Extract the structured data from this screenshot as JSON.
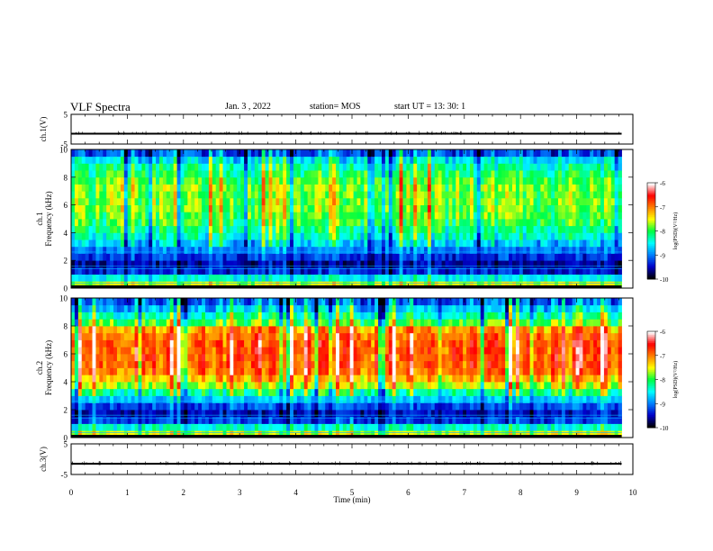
{
  "header": {
    "title": "VLF Spectra",
    "date": "Jan. 3 , 2022",
    "station": "station= MOS",
    "start": "start UT = 13: 30: 1"
  },
  "chart_data": [
    {
      "type": "line",
      "panel": "ch1-waveform",
      "ylabel": "ch.1(V)",
      "yticks": [
        "5",
        "-5"
      ],
      "ylim": [
        -5,
        5
      ],
      "xlim": [
        0,
        10
      ],
      "series": [
        {
          "x": [
            0,
            9.8
          ],
          "values": [
            -1.5,
            -1.5
          ]
        }
      ]
    },
    {
      "type": "heatmap",
      "panel": "ch1-spectrogram",
      "ylabel": "ch.1",
      "ylabel2": "Frequency (kHz)",
      "yticks": [
        "0",
        "2",
        "4",
        "6",
        "8",
        "10"
      ],
      "ylim": [
        0,
        10
      ],
      "xlim": [
        0,
        10
      ],
      "data_xmax": 9.8,
      "profile_khz": [
        0.25,
        0.75,
        1.25,
        1.75,
        2.25,
        2.75,
        3.25,
        3.75,
        4.25,
        4.75,
        5.25,
        5.75,
        6.25,
        6.75,
        7.25,
        7.75,
        8.25,
        8.75,
        9.25,
        9.75
      ],
      "profile_level": [
        -7.6,
        -8.5,
        -9.4,
        -9.6,
        -9.3,
        -9.0,
        -8.7,
        -8.4,
        -8.2,
        -8.0,
        -7.9,
        -7.8,
        -7.8,
        -7.8,
        -7.8,
        -7.9,
        -8.1,
        -8.3,
        -8.6,
        -9.2
      ]
    },
    {
      "type": "heatmap",
      "panel": "ch2-spectrogram",
      "ylabel": "ch.2",
      "ylabel2": "Frequency (kHz)",
      "yticks": [
        "0",
        "2",
        "4",
        "6",
        "8",
        "10"
      ],
      "ylim": [
        0,
        10
      ],
      "xlim": [
        0,
        10
      ],
      "data_xmax": 9.8,
      "profile_khz": [
        0.25,
        0.75,
        1.25,
        1.75,
        2.25,
        2.75,
        3.25,
        3.75,
        4.25,
        4.75,
        5.25,
        5.75,
        6.25,
        6.75,
        7.25,
        7.75,
        8.25,
        8.75,
        9.25,
        9.75
      ],
      "profile_level": [
        -7.6,
        -8.4,
        -9.3,
        -9.5,
        -9.2,
        -8.7,
        -8.2,
        -7.6,
        -7.2,
        -6.9,
        -6.8,
        -6.8,
        -6.8,
        -6.8,
        -6.9,
        -7.1,
        -7.9,
        -8.3,
        -8.7,
        -9.1
      ]
    },
    {
      "type": "line",
      "panel": "ch3-waveform",
      "ylabel": "ch.3(V)",
      "yticks": [
        "5",
        "-5"
      ],
      "ylim": [
        -5,
        5
      ],
      "xlim": [
        0,
        10
      ],
      "xlabel": "Time (min)",
      "xticks": [
        "0",
        "1",
        "2",
        "3",
        "4",
        "5",
        "6",
        "7",
        "8",
        "9",
        "10"
      ],
      "series": [
        {
          "x": [
            0,
            9.8
          ],
          "values": [
            -1.5,
            -1.5
          ]
        }
      ]
    }
  ],
  "colorbars": [
    {
      "label": "log(PSD)(V²/Hz)",
      "ticks": [
        "-6",
        "-7",
        "-8",
        "-9",
        "-10"
      ],
      "range": [
        -10,
        -6
      ]
    },
    {
      "label": "log(PSD)(V²/Hz)",
      "ticks": [
        "-6",
        "-7",
        "-8",
        "-9",
        "-10"
      ],
      "range": [
        -10,
        -6
      ]
    }
  ],
  "colors": {
    "colormap": [
      "#000000",
      "#0000c8",
      "#0080ff",
      "#00ffff",
      "#00ff40",
      "#ffff00",
      "#ff8000",
      "#ff0000",
      "#ffffff"
    ]
  }
}
